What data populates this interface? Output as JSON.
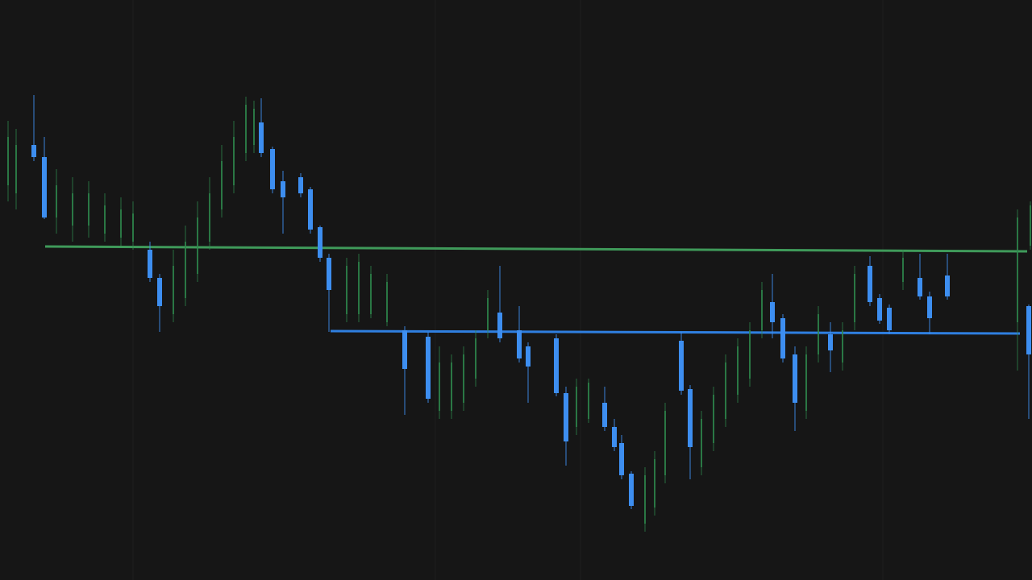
{
  "chart_data": {
    "type": "candlestick",
    "xlim": [
      0,
      128
    ],
    "ylim": [
      0,
      72
    ],
    "up_color": "#2f8a4e",
    "down_color": "#3d8ef0",
    "x": [
      4.2,
      5.5,
      18.6,
      19.8,
      32.4,
      33.8,
      35.1,
      37.3,
      38.5,
      39.7,
      40.8,
      50.2,
      53.1,
      62.0,
      64.4,
      65.5,
      69.0,
      70.2,
      75.0,
      76.2,
      77.1,
      78.3,
      84.5,
      85.6,
      95.8,
      97.1,
      98.6,
      103.0,
      107.9,
      109.1,
      110.3,
      114.1,
      115.3,
      117.5,
      127.6,
      1.0,
      2.0,
      7.0,
      9.0,
      11.0,
      13.0,
      15.0,
      16.5,
      21.5,
      23.0,
      24.5,
      26.0,
      27.5,
      29.0,
      30.5,
      31.5,
      43.0,
      44.5,
      46.0,
      48.0,
      54.5,
      56.0,
      57.5,
      59.0,
      60.5,
      71.5,
      73.0,
      80.0,
      81.2,
      82.5,
      87.0,
      88.5,
      90.0,
      91.5,
      93.0,
      94.5,
      100.0,
      101.5,
      104.5,
      106.0,
      112.0,
      126.2,
      127.8
    ],
    "open": [
      54,
      52.5,
      41,
      37.5,
      56.8,
      53.5,
      49.5,
      50,
      48.5,
      43.8,
      40,
      31,
      30.2,
      33.2,
      31,
      29,
      30,
      23.2,
      22,
      19,
      17,
      13.2,
      29.7,
      23.7,
      34.5,
      32.5,
      28,
      30.5,
      39,
      35,
      33.8,
      37.5,
      35.2,
      37.8,
      34,
      49,
      48,
      45,
      44,
      44,
      43,
      42.5,
      42,
      33,
      35,
      38,
      42,
      46,
      49,
      53,
      54,
      33,
      33,
      33,
      32,
      21,
      21,
      22,
      25,
      31,
      19,
      20,
      7,
      9,
      13,
      14,
      17,
      20,
      23,
      25,
      31,
      21,
      28,
      27,
      32,
      37,
      32,
      41.5
    ],
    "high": [
      60.2,
      55,
      42,
      38,
      59.8,
      53.8,
      50.8,
      50.5,
      48.8,
      44,
      40.5,
      31.5,
      30.8,
      39,
      34,
      29.5,
      30.5,
      24,
      24,
      20,
      18,
      13.5,
      30.8,
      24.2,
      38,
      33,
      29,
      32,
      40.2,
      35.5,
      34.2,
      40.5,
      35.8,
      40.5,
      34.2,
      57,
      56,
      51,
      50,
      49.5,
      48,
      47.5,
      47,
      41,
      44,
      47,
      50,
      54,
      57,
      60,
      59.5,
      40,
      40.5,
      39,
      38,
      29,
      28,
      29,
      31,
      36,
      25,
      25,
      14,
      16,
      22,
      21,
      24,
      28,
      30,
      32,
      37,
      29,
      34,
      32,
      39,
      41,
      46,
      47
    ],
    "low": [
      52,
      44.8,
      37,
      30.8,
      52.5,
      48,
      43,
      47.5,
      43,
      39.5,
      30.8,
      20.5,
      22,
      29.5,
      27,
      22,
      22.8,
      14.2,
      18.5,
      16,
      12.5,
      8.8,
      23,
      12.5,
      30,
      27,
      18.5,
      25.8,
      34,
      31.8,
      30.5,
      34.8,
      30.5,
      34.8,
      20,
      47,
      46,
      43,
      42,
      42.5,
      42,
      41.5,
      41,
      32,
      34,
      37,
      41,
      45,
      48,
      52,
      53,
      32,
      32,
      32.5,
      31.5,
      20,
      20,
      21,
      24,
      30,
      18,
      19.5,
      6,
      8,
      12,
      13,
      16,
      19,
      22,
      24,
      30,
      20,
      27,
      26,
      31,
      36,
      26,
      41
    ],
    "close": [
      52.5,
      45,
      37.5,
      34,
      53,
      48.5,
      47.5,
      48,
      43.5,
      40,
      36,
      26.2,
      22.5,
      30,
      27.5,
      26.5,
      23.2,
      17.2,
      19,
      16.5,
      13,
      9.2,
      23.5,
      16.5,
      32,
      27.5,
      22,
      28.5,
      34.5,
      32.2,
      31,
      35.2,
      32.5,
      35.2,
      28,
      55,
      54,
      49,
      48,
      48,
      46.5,
      46,
      45.5,
      39,
      42,
      45,
      48,
      52,
      55,
      59,
      58.5,
      39,
      39.5,
      38,
      37,
      27,
      27,
      28,
      30,
      35,
      24,
      24.5,
      13,
      15,
      21,
      20,
      23,
      27,
      29,
      31,
      36,
      28,
      33,
      31,
      38,
      40,
      45,
      46.5
    ],
    "levels": [
      {
        "color": "#3f9a5a",
        "x": [
          5.6,
          127.4
        ],
        "y": [
          41.4,
          40.8
        ]
      },
      {
        "color": "#2f7fe0",
        "x": [
          41,
          126.5
        ],
        "y": [
          30.9,
          30.6
        ]
      }
    ]
  }
}
